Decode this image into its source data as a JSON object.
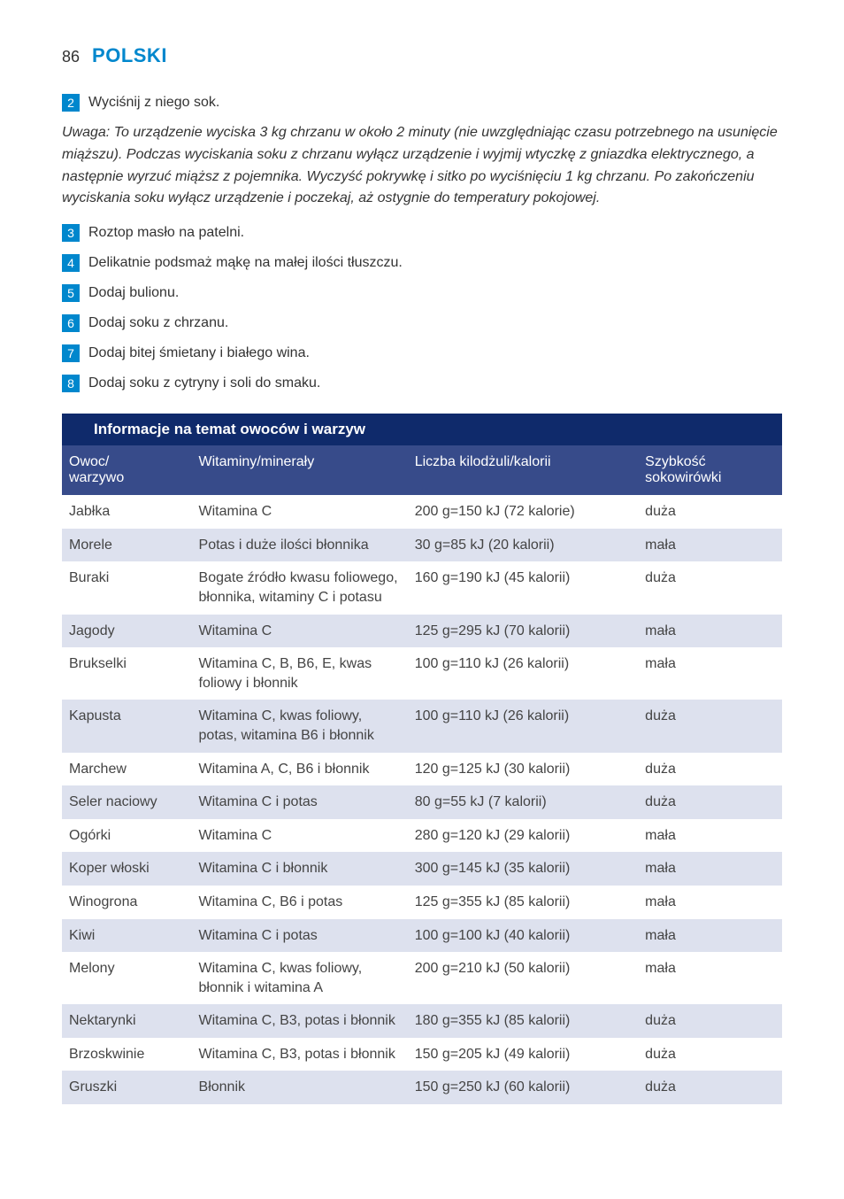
{
  "colors": {
    "accent": "#0087cd",
    "band_dark": "#0f2a6b",
    "header_row": "#374b8a",
    "row_odd": "#dde1ee",
    "text": "#333333"
  },
  "header": {
    "page_number": "86",
    "section_title": "POLSKI"
  },
  "steps_a": [
    {
      "n": "2",
      "text": "Wyciśnij z niego sok."
    }
  ],
  "note": "Uwaga: To urządzenie wyciska 3 kg chrzanu w około 2 minuty (nie uwzględniając czasu potrzebnego na usunięcie miąższu). Podczas wyciskania soku z chrzanu wyłącz urządzenie i wyjmij wtyczkę z gniazdka elektrycznego, a następnie wyrzuć miąższ z pojemnika. Wyczyść pokrywkę i sitko po wyciśnięciu 1 kg chrzanu. Po zakończeniu wyciskania soku wyłącz urządzenie i poczekaj, aż ostygnie do temperatury pokojowej.",
  "steps_b": [
    {
      "n": "3",
      "text": "Roztop masło na patelni."
    },
    {
      "n": "4",
      "text": "Delikatnie podsmaż mąkę na małej ilości tłuszczu."
    },
    {
      "n": "5",
      "text": "Dodaj bulionu."
    },
    {
      "n": "6",
      "text": "Dodaj soku z chrzanu."
    },
    {
      "n": "7",
      "text": "Dodaj bitej śmietany i białego wina."
    },
    {
      "n": "8",
      "text": "Dodaj soku z cytryny i soli do smaku."
    }
  ],
  "band_title": "Informacje na temat owoców i warzyw",
  "table": {
    "columns": [
      "Owoc/\nwarzywo",
      "Witaminy/minerały",
      "Liczba kilodżuli/kalorii",
      "Szybkość sokowirówki"
    ],
    "rows": [
      [
        "Jabłka",
        "Witamina C",
        "200 g=150 kJ (72 kalorie)",
        "duża"
      ],
      [
        "Morele",
        "Potas i duże ilości błonnika",
        "30 g=85 kJ (20 kalorii)",
        "mała"
      ],
      [
        "Buraki",
        "Bogate źródło kwasu foliowego, błonnika, witaminy C i potasu",
        "160 g=190 kJ (45 kalorii)",
        "duża"
      ],
      [
        "Jagody",
        "Witamina C",
        "125 g=295 kJ (70 kalorii)",
        "mała"
      ],
      [
        "Brukselki",
        "Witamina C, B, B6, E, kwas foliowy i błonnik",
        "100 g=110 kJ (26 kalorii)",
        "mała"
      ],
      [
        "Kapusta",
        "Witamina C, kwas foliowy, potas, witamina B6 i błonnik",
        "100 g=110 kJ (26 kalorii)",
        "duża"
      ],
      [
        "Marchew",
        "Witamina A, C, B6 i błonnik",
        "120 g=125 kJ (30 kalorii)",
        "duża"
      ],
      [
        "Seler naciowy",
        "Witamina C i potas",
        "80 g=55 kJ (7 kalorii)",
        "duża"
      ],
      [
        "Ogórki",
        "Witamina C",
        "280 g=120 kJ (29 kalorii)",
        "mała"
      ],
      [
        "Koper włoski",
        "Witamina C i błonnik",
        "300 g=145 kJ (35 kalorii)",
        "mała"
      ],
      [
        "Winogrona",
        "Witamina C, B6 i potas",
        "125 g=355 kJ (85 kalorii)",
        "mała"
      ],
      [
        "Kiwi",
        "Witamina C i potas",
        "100 g=100 kJ (40 kalorii)",
        "mała"
      ],
      [
        "Melony",
        "Witamina C, kwas foliowy, błonnik i witamina A",
        "200 g=210 kJ (50 kalorii)",
        "mała"
      ],
      [
        "Nektarynki",
        "Witamina C, B3, potas i błonnik",
        "180 g=355 kJ (85 kalorii)",
        "duża"
      ],
      [
        "Brzoskwinie",
        "Witamina C, B3, potas i błonnik",
        "150 g=205 kJ (49 kalorii)",
        "duża"
      ],
      [
        "Gruszki",
        "Błonnik",
        "150 g=250 kJ (60 kalorii)",
        "duża"
      ]
    ]
  }
}
